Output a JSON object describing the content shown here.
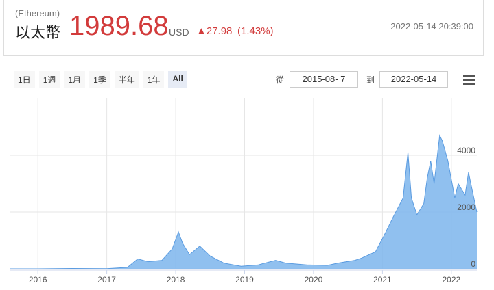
{
  "header": {
    "subtitle": "(Ethereum)",
    "name": "以太幣",
    "price": "1989.68",
    "currency": "USD",
    "change": "▲27.98",
    "change_pct": "(1.43%)",
    "timestamp": "2022-05-14 20:39:00"
  },
  "range_buttons": [
    "1日",
    "1週",
    "1月",
    "1季",
    "半年",
    "1年",
    "All"
  ],
  "from_label": "從",
  "from_date": "2015-08- 7",
  "to_label": "到",
  "to_date": "2022-05-14",
  "chart_data": {
    "type": "area",
    "color": "#7cb5ec",
    "line_color": "#5a9be0",
    "grid": true,
    "x": [
      2015.6,
      2016.0,
      2016.5,
      2017.0,
      2017.3,
      2017.45,
      2017.6,
      2017.8,
      2017.95,
      2018.04,
      2018.1,
      2018.2,
      2018.35,
      2018.5,
      2018.7,
      2018.95,
      2019.2,
      2019.45,
      2019.6,
      2019.9,
      2020.2,
      2020.35,
      2020.6,
      2020.7,
      2020.9,
      2021.05,
      2021.15,
      2021.3,
      2021.37,
      2021.42,
      2021.5,
      2021.6,
      2021.65,
      2021.7,
      2021.75,
      2021.83,
      2021.87,
      2021.95,
      2022.05,
      2022.1,
      2022.2,
      2022.25,
      2022.3,
      2022.37
    ],
    "values": [
      1,
      1,
      12,
      8,
      50,
      350,
      250,
      300,
      700,
      1300,
      900,
      500,
      800,
      450,
      200,
      90,
      140,
      300,
      200,
      140,
      120,
      200,
      300,
      380,
      600,
      1300,
      1800,
      2500,
      4100,
      2500,
      1900,
      2300,
      3200,
      3800,
      3000,
      4700,
      4500,
      3800,
      2500,
      3000,
      2600,
      3400,
      2800,
      2000
    ],
    "xlim": [
      2015.6,
      2022.37
    ],
    "xticks": [
      2016,
      2017,
      2018,
      2019,
      2020,
      2021,
      2022
    ],
    "ylim": [
      0,
      6000
    ],
    "yticks": [
      0,
      2000,
      4000
    ]
  }
}
